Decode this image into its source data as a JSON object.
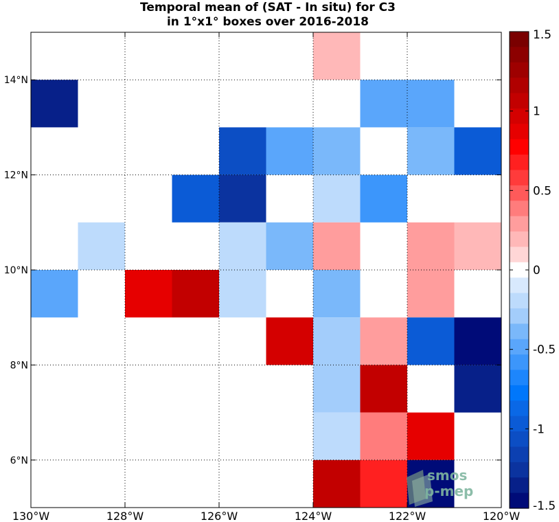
{
  "chart_data": {
    "type": "heatmap",
    "title_lines": [
      "Temporal mean of (SAT - In situ) for C3",
      "in 1°x1° boxes over 2016-2018"
    ],
    "x_range": [
      -130,
      -120
    ],
    "y_range": [
      5,
      15
    ],
    "x_ticks": [
      -130,
      -128,
      -126,
      -124,
      -122,
      -120
    ],
    "x_tick_labels": [
      "130°W",
      "128°W",
      "126°W",
      "124°W",
      "122°W",
      "120°W"
    ],
    "y_ticks": [
      6,
      8,
      10,
      12,
      14
    ],
    "y_tick_labels": [
      "6°N",
      "8°N",
      "10°N",
      "12°N",
      "14°N"
    ],
    "grid": true,
    "cell_size_deg": 1,
    "cells": [
      {
        "lon": -123.5,
        "lat": 14.5,
        "value": 0.15
      },
      {
        "lon": -129.5,
        "lat": 13.5,
        "value": -1.35
      },
      {
        "lon": -122.5,
        "lat": 13.5,
        "value": -0.45
      },
      {
        "lon": -121.5,
        "lat": 13.5,
        "value": -0.45
      },
      {
        "lon": -125.5,
        "lat": 12.5,
        "value": -1.05
      },
      {
        "lon": -124.5,
        "lat": 12.5,
        "value": -0.45
      },
      {
        "lon": -123.5,
        "lat": 12.5,
        "value": -0.35
      },
      {
        "lon": -121.5,
        "lat": 12.5,
        "value": -0.35
      },
      {
        "lon": -120.5,
        "lat": 12.5,
        "value": -0.95
      },
      {
        "lon": -126.5,
        "lat": 11.5,
        "value": -0.95
      },
      {
        "lon": -125.5,
        "lat": 11.5,
        "value": -1.25
      },
      {
        "lon": -123.5,
        "lat": 11.5,
        "value": -0.15
      },
      {
        "lon": -122.5,
        "lat": 11.5,
        "value": -0.55
      },
      {
        "lon": -128.5,
        "lat": 10.5,
        "value": -0.15
      },
      {
        "lon": -125.5,
        "lat": 10.5,
        "value": -0.15
      },
      {
        "lon": -124.5,
        "lat": 10.5,
        "value": -0.35
      },
      {
        "lon": -123.5,
        "lat": 10.5,
        "value": 0.25
      },
      {
        "lon": -121.5,
        "lat": 10.5,
        "value": 0.25
      },
      {
        "lon": -120.5,
        "lat": 10.5,
        "value": 0.15
      },
      {
        "lon": -129.5,
        "lat": 9.5,
        "value": -0.45
      },
      {
        "lon": -127.5,
        "lat": 9.5,
        "value": 0.85
      },
      {
        "lon": -126.5,
        "lat": 9.5,
        "value": 1.05
      },
      {
        "lon": -125.5,
        "lat": 9.5,
        "value": -0.15
      },
      {
        "lon": -123.5,
        "lat": 9.5,
        "value": -0.35
      },
      {
        "lon": -121.5,
        "lat": 9.5,
        "value": 0.25
      },
      {
        "lon": -124.5,
        "lat": 8.5,
        "value": 0.95
      },
      {
        "lon": -123.5,
        "lat": 8.5,
        "value": -0.25
      },
      {
        "lon": -122.5,
        "lat": 8.5,
        "value": 0.25
      },
      {
        "lon": -121.5,
        "lat": 8.5,
        "value": -0.95
      },
      {
        "lon": -120.5,
        "lat": 8.5,
        "value": -1.45
      },
      {
        "lon": -123.5,
        "lat": 7.5,
        "value": -0.25
      },
      {
        "lon": -122.5,
        "lat": 7.5,
        "value": 1.05
      },
      {
        "lon": -120.5,
        "lat": 7.5,
        "value": -1.35
      },
      {
        "lon": -123.5,
        "lat": 6.5,
        "value": -0.15
      },
      {
        "lon": -122.5,
        "lat": 6.5,
        "value": 0.35
      },
      {
        "lon": -121.5,
        "lat": 6.5,
        "value": 0.85
      },
      {
        "lon": -123.5,
        "lat": 5.5,
        "value": 1.05
      },
      {
        "lon": -122.5,
        "lat": 5.5,
        "value": 0.65
      },
      {
        "lon": -121.5,
        "lat": 5.5,
        "value": -1.45
      }
    ],
    "colorbar": {
      "range": [
        -1.5,
        1.5
      ],
      "ticks": [
        1.5,
        1,
        0.5,
        0,
        -0.5,
        -1,
        -1.5
      ],
      "tick_labels": [
        "1.5",
        "1",
        "0.5",
        "0",
        "-0.5",
        "-1",
        "-1.5"
      ],
      "colors_top_to_bottom": [
        "#7a0000",
        "#8c0000",
        "#9e0000",
        "#b00000",
        "#c20000",
        "#d40000",
        "#e60000",
        "#ff0000",
        "#ff2020",
        "#ff3b3b",
        "#ff5a5a",
        "#ff7c7c",
        "#ff9d9d",
        "#ffb8b8",
        "#ffd6d6",
        "#ffffff",
        "#d8e9fd",
        "#bddbfc",
        "#a3cdfb",
        "#7ab8fa",
        "#5aa6fb",
        "#3c96fb",
        "#1d86fc",
        "#0077fb",
        "#0a68e6",
        "#0b5bd6",
        "#0c4ec4",
        "#0c40b1",
        "#0b339f",
        "#072089",
        "#000b78"
      ]
    },
    "watermark": {
      "line1": "smos",
      "line2": "p-mep"
    }
  }
}
